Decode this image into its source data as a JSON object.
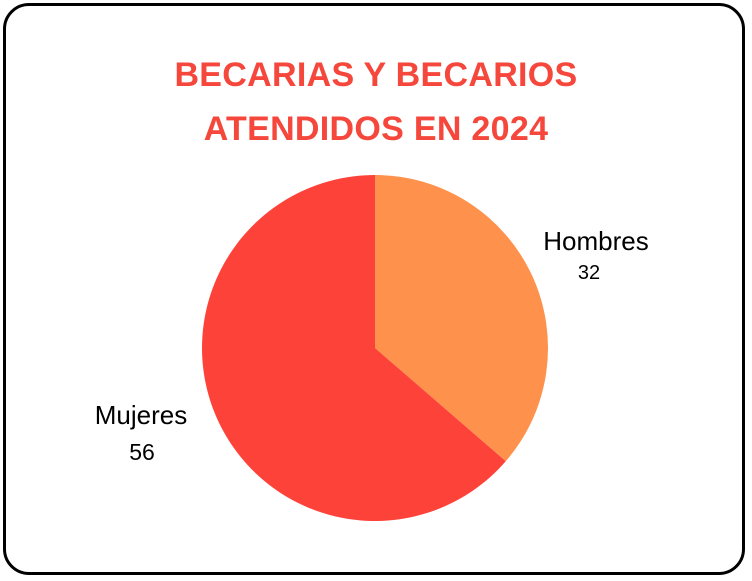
{
  "chart_data": {
    "type": "pie",
    "title_lines": [
      "BECARIAS Y BECARIOS",
      "ATENDIDOS EN 2024"
    ],
    "title_color": "#f5473b",
    "slices": [
      {
        "label": "Hombres",
        "value": 32,
        "color": "#fe914c"
      },
      {
        "label": "Mujeres",
        "value": 56,
        "color": "#fd4339"
      }
    ]
  }
}
